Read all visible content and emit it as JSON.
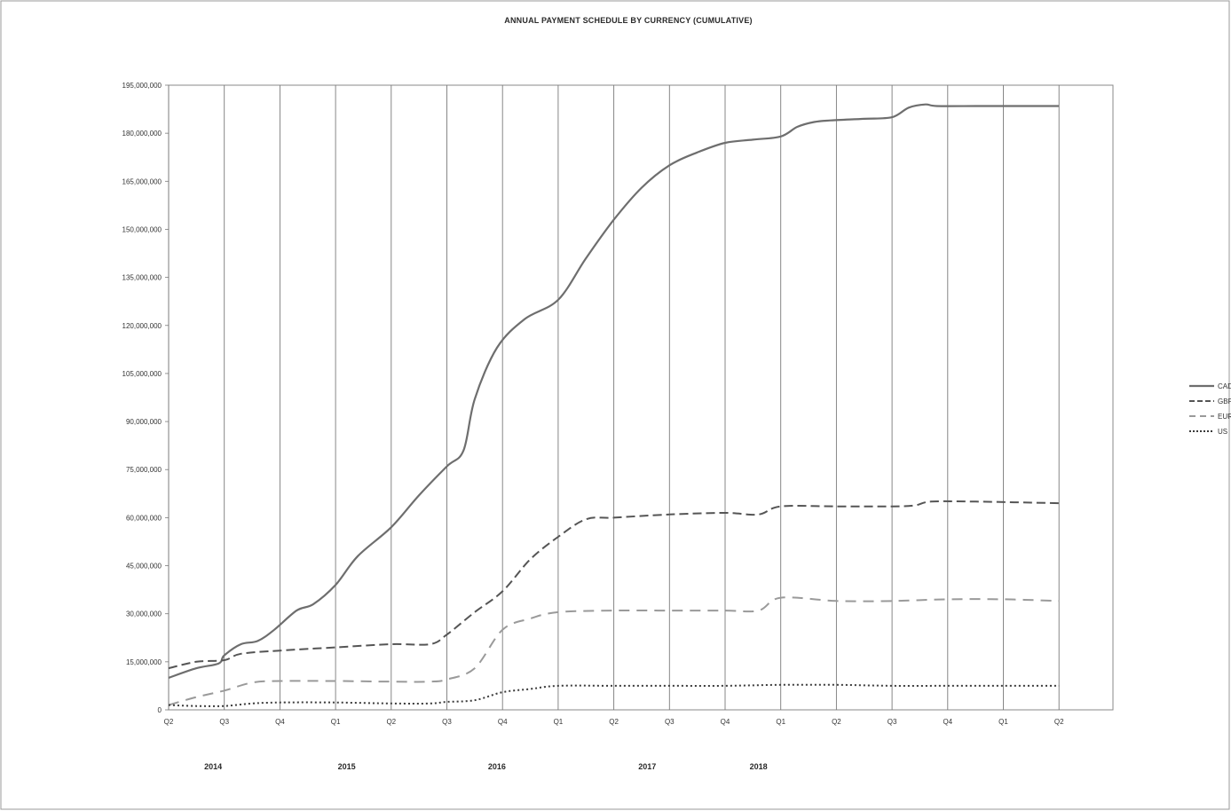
{
  "chart_data": {
    "type": "line",
    "title": "ANNUAL PAYMENT SCHEDULE BY CURRENCY (CUMULATIVE)",
    "xlabel": "",
    "ylabel": "",
    "ylim": [
      0,
      195000000
    ],
    "yticks": [
      0,
      15000000,
      30000000,
      45000000,
      60000000,
      75000000,
      90000000,
      105000000,
      120000000,
      135000000,
      150000000,
      165000000,
      180000000,
      195000000
    ],
    "ytick_labels": [
      "0",
      "15,000,000",
      "30,000,000",
      "45,000,000",
      "60,000,000",
      "75,000,000",
      "90,000,000",
      "105,000,000",
      "120,000,000",
      "135,000,000",
      "150,000,000",
      "165,000,000",
      "180,000,000",
      "195,000,000"
    ],
    "x_tick_labels": [
      "Q2",
      "Q3",
      "Q4",
      "Q1",
      "Q2",
      "Q3",
      "Q4",
      "Q1",
      "Q2",
      "Q3",
      "Q4",
      "Q1",
      "Q2",
      "Q3",
      "Q4",
      "Q1",
      "Q2"
    ],
    "year_labels": [
      {
        "label": "2014",
        "at": 0.8
      },
      {
        "label": "2015",
        "at": 3.2
      },
      {
        "label": "2016",
        "at": 5.9
      },
      {
        "label": "2017",
        "at": 8.6
      },
      {
        "label": "2018",
        "at": 10.6
      }
    ],
    "grid": "vertical",
    "legend_position": "right",
    "series": [
      {
        "name": "CAD",
        "dash": "solid",
        "color": "#6e6e6e",
        "x": [
          0,
          0.5,
          0.9,
          1.0,
          1.3,
          1.6,
          1.9,
          2.3,
          2.6,
          3.0,
          3.4,
          4.0,
          4.5,
          5.0,
          5.3,
          5.5,
          5.9,
          6.4,
          7.0,
          7.5,
          8.0,
          8.5,
          9.0,
          9.5,
          10.0,
          10.5,
          11.0,
          11.3,
          11.6,
          11.9,
          12.5,
          13.0,
          13.3,
          13.6,
          13.8,
          14.5,
          15.0,
          16.0
        ],
        "y": [
          10000000,
          13000000,
          14500000,
          17000000,
          20500000,
          21500000,
          25000000,
          31000000,
          33000000,
          39000000,
          48000000,
          57000000,
          67000000,
          76000000,
          81000000,
          97000000,
          113000000,
          122000000,
          128000000,
          141000000,
          153000000,
          163000000,
          170000000,
          174000000,
          177000000,
          178000000,
          179000000,
          182000000,
          183500000,
          184000000,
          184500000,
          185000000,
          188000000,
          189000000,
          188500000,
          188500000,
          188500000,
          188500000
        ]
      },
      {
        "name": "GBP",
        "dash": "long-dash",
        "color": "#555555",
        "x": [
          0,
          0.5,
          1.0,
          1.3,
          2.0,
          3.0,
          4.0,
          4.7,
          5.0,
          5.5,
          6.0,
          6.5,
          7.0,
          7.5,
          8.0,
          9.0,
          10.0,
          10.6,
          11.0,
          12.0,
          13.0,
          13.4,
          13.7,
          14.5,
          16.0
        ],
        "y": [
          13000000,
          15000000,
          15500000,
          17500000,
          18500000,
          19500000,
          20500000,
          20500000,
          23500000,
          30500000,
          37000000,
          47000000,
          54000000,
          59500000,
          60000000,
          61000000,
          61500000,
          61000000,
          63500000,
          63500000,
          63500000,
          63800000,
          65000000,
          65000000,
          64500000
        ]
      },
      {
        "name": "EUR",
        "dash": "dash",
        "color": "#9a9a9a",
        "x": [
          0,
          0.5,
          1.0,
          1.5,
          2.0,
          3.0,
          4.0,
          4.7,
          5.0,
          5.5,
          6.0,
          6.5,
          7.0,
          8.0,
          9.0,
          10.0,
          10.6,
          11.0,
          12.0,
          13.0,
          14.0,
          15.0,
          16.0
        ],
        "y": [
          1500000,
          4000000,
          6000000,
          8500000,
          9000000,
          9000000,
          8800000,
          8800000,
          9500000,
          13000000,
          25000000,
          28500000,
          30500000,
          31000000,
          31000000,
          31000000,
          31000000,
          35000000,
          34000000,
          34000000,
          34500000,
          34500000,
          34000000
        ]
      },
      {
        "name": "US",
        "dash": "dotted",
        "color": "#3a3a3a",
        "x": [
          0,
          0.5,
          1.0,
          1.5,
          2.0,
          3.0,
          4.0,
          4.7,
          5.0,
          5.5,
          6.0,
          6.5,
          7.0,
          8.0,
          9.0,
          10.0,
          11.0,
          12.0,
          13.0,
          14.0,
          15.0,
          16.0
        ],
        "y": [
          1500000,
          1200000,
          1200000,
          2000000,
          2300000,
          2300000,
          2000000,
          2000000,
          2500000,
          3000000,
          5500000,
          6500000,
          7500000,
          7500000,
          7500000,
          7500000,
          7800000,
          7800000,
          7500000,
          7500000,
          7500000,
          7500000
        ]
      }
    ]
  }
}
